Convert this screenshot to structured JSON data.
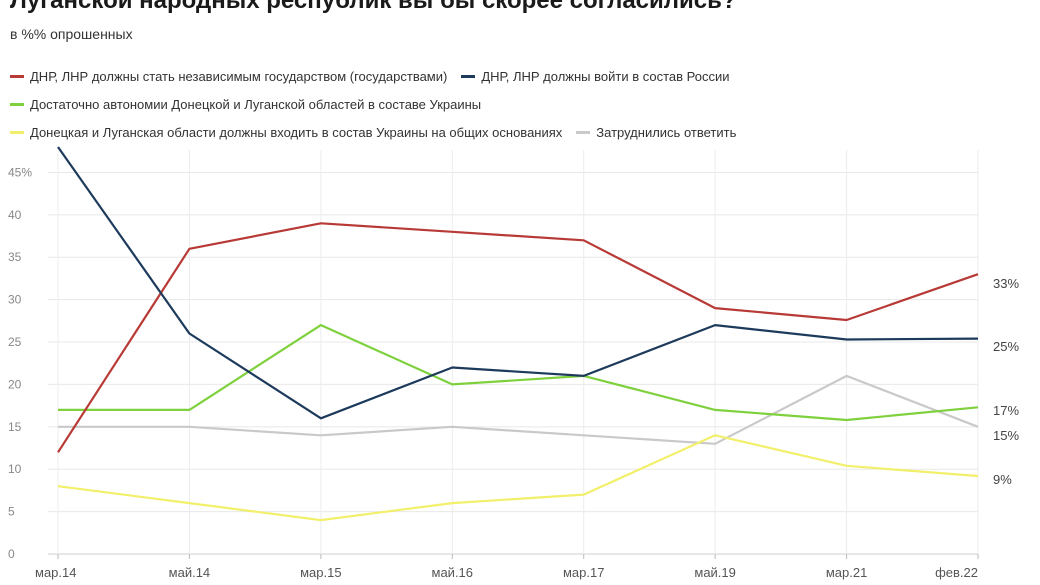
{
  "title": "Луганской народных республик вы бы скорее согласились?",
  "subtitle": "в %% опрошенных",
  "chart_data": {
    "type": "line",
    "categories": [
      "мар.14",
      "май.14",
      "мар.15",
      "май.16",
      "мар.17",
      "май.19",
      "мар.21",
      "фев.22"
    ],
    "ylim": [
      0,
      48
    ],
    "yticks": [
      "0",
      "5",
      "10",
      "15",
      "20",
      "25",
      "30",
      "35",
      "40",
      "45%"
    ],
    "grid": true,
    "legend_position": "top",
    "series": [
      {
        "name": "ДНР, ЛНР должны стать независимым государством (государствами)",
        "color": "#b83a36",
        "values": [
          12,
          36,
          39,
          38,
          37,
          29,
          27.6,
          33
        ],
        "end_label": "33%"
      },
      {
        "name": "ДНР, ЛНР должны войти в состав России",
        "color": "#1d3a5c",
        "values": [
          48,
          26,
          16,
          22,
          21,
          27,
          25.3,
          25.4
        ],
        "end_label": "25%"
      },
      {
        "name": "Достаточно автономии Донецкой и Луганской областей в составе Украины",
        "color": "#7ed13d",
        "values": [
          17,
          17,
          27,
          20,
          21,
          17,
          15.8,
          17.3
        ],
        "end_label": "17%"
      },
      {
        "name": "Донецкая и Луганская области должны входить в состав Украины на общих основаниях",
        "color": "#f2ef6a",
        "values": [
          8,
          6,
          4,
          6,
          7,
          14,
          10.4,
          9.2
        ],
        "end_label": "9%"
      },
      {
        "name": "Затруднились ответить",
        "color": "#c9c9c9",
        "values": [
          15,
          15,
          14,
          15,
          14,
          13,
          21,
          15
        ],
        "end_label": "15%"
      }
    ]
  }
}
